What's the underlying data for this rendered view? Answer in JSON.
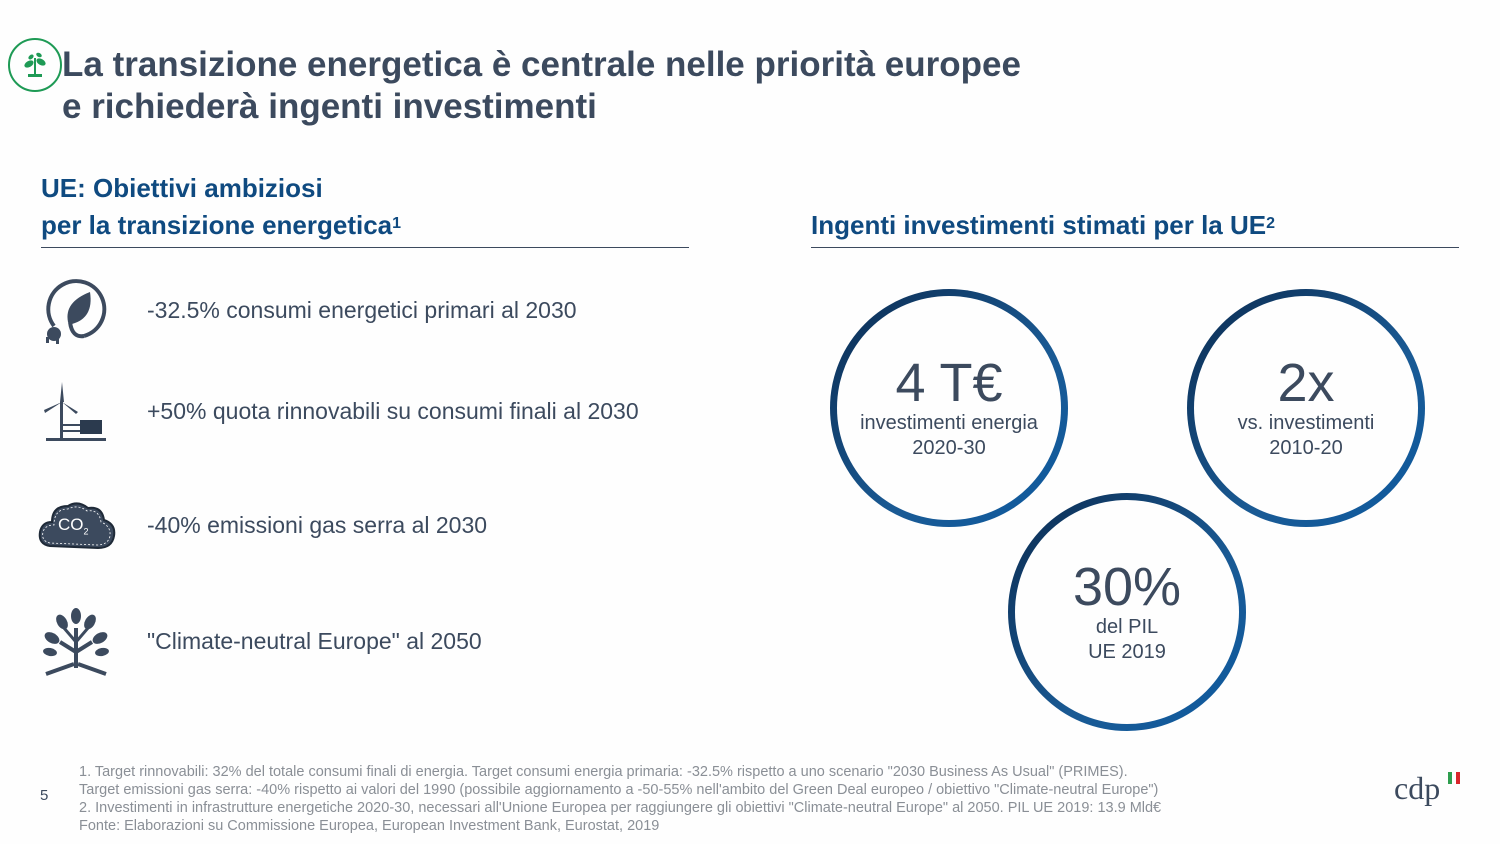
{
  "header": {
    "title_line1": "La transizione energetica è centrale nelle priorità europee",
    "title_line2": "e richiederà ingenti investimenti",
    "icon": "sprout-icon"
  },
  "left": {
    "heading_line1": "UE: Obiettivi ambiziosi",
    "heading_line2": "per la transizione energetica",
    "heading_sup": "1",
    "items": [
      {
        "icon": "leaf-plug-icon",
        "text": "-32.5% consumi energetici primari al 2030"
      },
      {
        "icon": "wind-turbine-icon",
        "text": "+50% quota rinnovabili su consumi finali al 2030"
      },
      {
        "icon": "co2-cloud-icon",
        "text": "-40% emissioni gas serra al 2030",
        "icon_label": "CO",
        "icon_sub": "2"
      },
      {
        "icon": "tree-icon",
        "text": "\"Climate-neutral Europe\" al 2050"
      }
    ]
  },
  "right": {
    "heading": "Ingenti investimenti stimati per la UE",
    "heading_sup": "2",
    "circles": [
      {
        "value": "4 T€",
        "line1": "investimenti energia",
        "line2": "2020-30"
      },
      {
        "value": "2x",
        "line1": "vs. investimenti",
        "line2": "2010-20"
      },
      {
        "value": "30%",
        "line1": "del PIL",
        "line2": "UE 2019"
      }
    ]
  },
  "footer": {
    "page_number": "5",
    "notes": [
      "1. Target rinnovabili: 32% del totale consumi finali di energia. Target consumi energia primaria: -32.5% rispetto a uno scenario \"2030 Business As Usual\" (PRIMES).",
      "Target emissioni gas serra: -40% rispetto ai valori del 1990 (possibile aggiornamento a -50-55% nell'ambito del Green Deal europeo / obiettivo \"Climate-neutral Europe\")",
      "2. Investimenti in infrastrutture energetiche 2020-30, necessari all'Unione Europea per raggiungere gli obiettivi \"Climate-neutral Europe\" al 2050. PIL UE 2019: 13.9 Mld€",
      "Fonte: Elaborazioni su Commissione Europea, European Investment Bank, Eurostat, 2019"
    ],
    "logo_text": "cdp"
  },
  "colors": {
    "title": "#3c4a5e",
    "heading": "#0f4a80",
    "accent_green": "#1e9a55",
    "flag_green": "#2e9e4f",
    "flag_red": "#d9262c"
  }
}
